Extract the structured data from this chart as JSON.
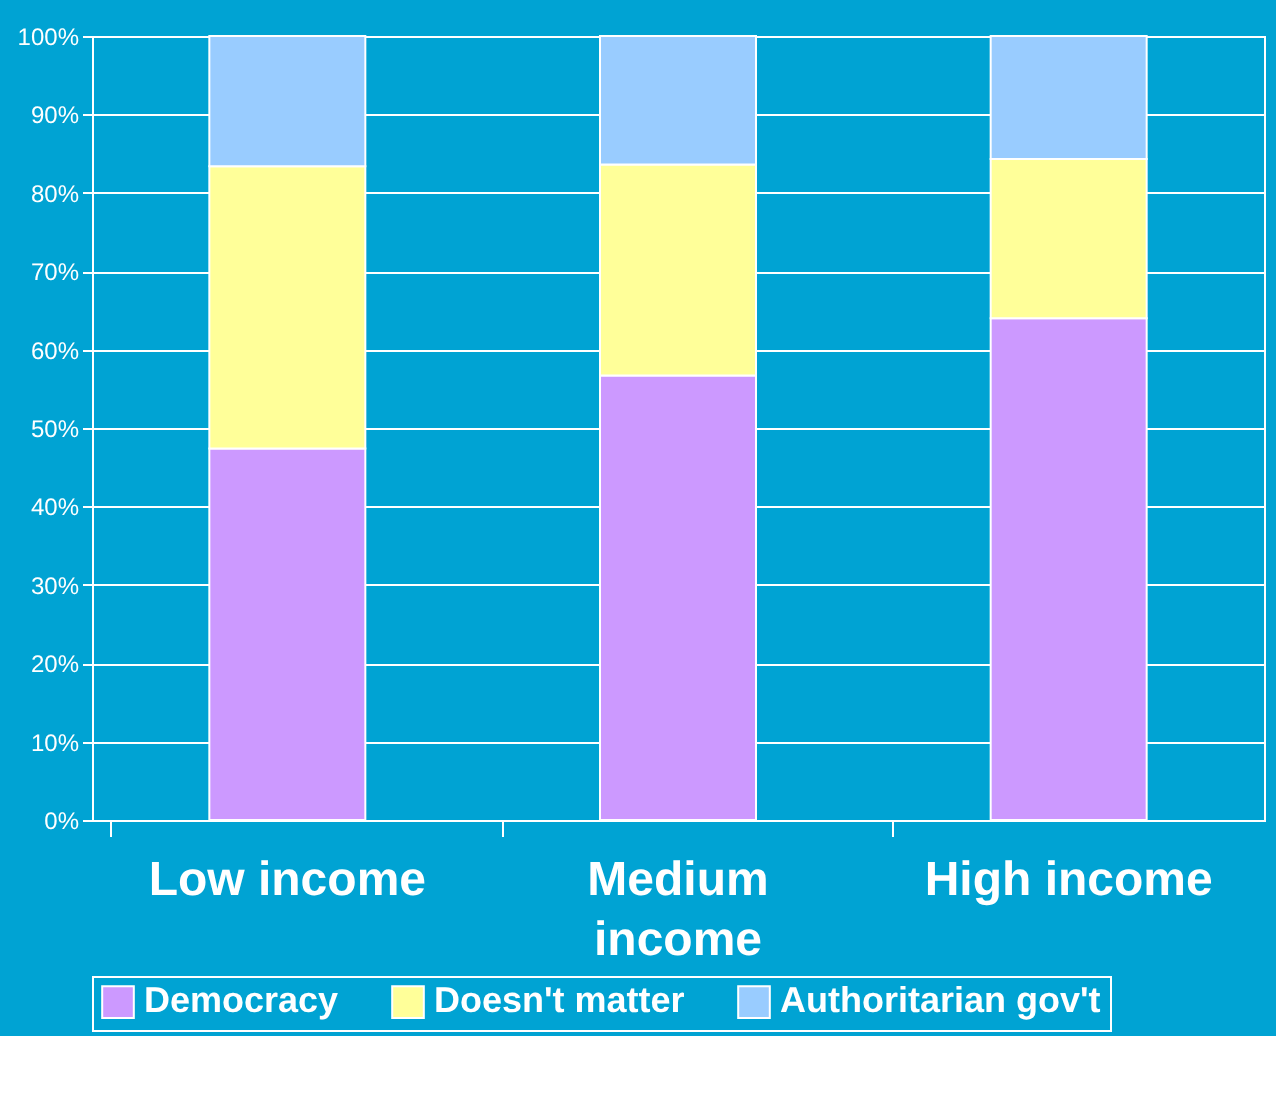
{
  "chart_data": {
    "type": "bar",
    "stacked": true,
    "categories": [
      "Low income",
      "Medium income",
      "High income"
    ],
    "series": [
      {
        "name": "Democracy",
        "color": "#cc99ff",
        "values": [
          47.4,
          56.7,
          64.0
        ]
      },
      {
        "name": "Doesn't matter",
        "color": "#ffff99",
        "values": [
          36.0,
          26.9,
          20.3
        ]
      },
      {
        "name": "Authoritarian gov't",
        "color": "#99ccff",
        "values": [
          16.6,
          16.4,
          15.7
        ]
      }
    ],
    "ylim": [
      0,
      100
    ],
    "yticks": [
      {
        "value": 0,
        "label": "0%"
      },
      {
        "value": 10,
        "label": "10%"
      },
      {
        "value": 20,
        "label": "20%"
      },
      {
        "value": 30,
        "label": "30%"
      },
      {
        "value": 40,
        "label": "40%"
      },
      {
        "value": 50,
        "label": "50%"
      },
      {
        "value": 60,
        "label": "60%"
      },
      {
        "value": 70,
        "label": "70%"
      },
      {
        "value": 80,
        "label": "80%"
      },
      {
        "value": 90,
        "label": "90%"
      },
      {
        "value": 100,
        "label": "100%"
      }
    ],
    "grid": "y",
    "legend": "bottom"
  }
}
